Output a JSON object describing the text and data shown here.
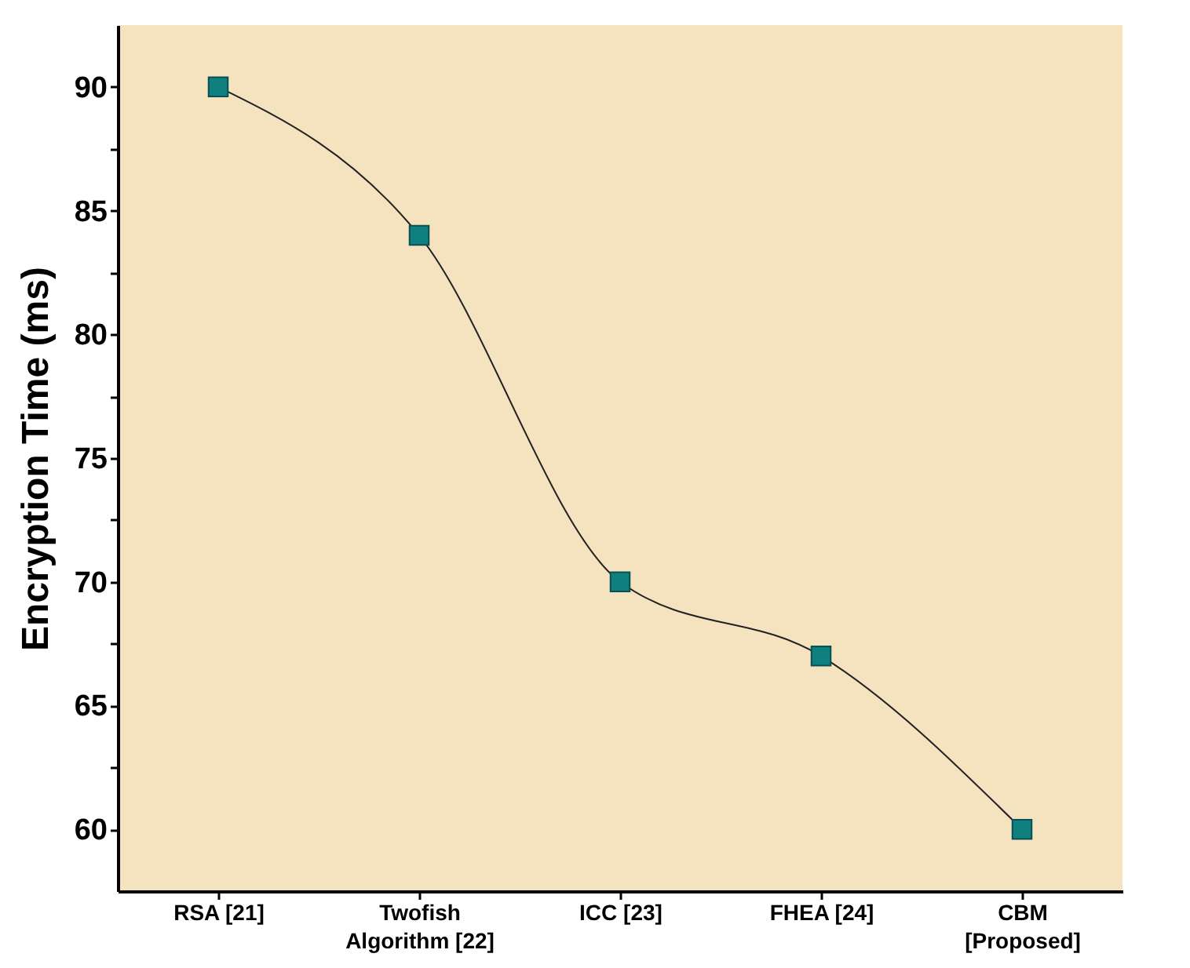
{
  "chart_data": {
    "type": "line",
    "ylabel": "Encryption Time (ms)",
    "categories": [
      "RSA [21]",
      "Twofish\nAlgorithm [22]",
      "ICC [23]",
      "FHEA [24]",
      "CBM\n[Proposed]"
    ],
    "series": [
      {
        "color": "#0f7f7f",
        "values": [
          90,
          84,
          70,
          67,
          60
        ]
      }
    ],
    "marker": "square",
    "line_style": "solid",
    "ylim": [
      57.5,
      92.5
    ],
    "yticks": [
      60,
      {
        "value": 62.5,
        "label": null
      },
      65,
      {
        "value": 67.5,
        "label": null
      },
      70,
      {
        "value": 72.5,
        "label": null
      },
      75,
      {
        "value": 77.5,
        "label": null
      },
      80,
      {
        "value": 82.5,
        "label": null
      },
      85,
      {
        "value": 87.5,
        "label": null
      },
      90
    ],
    "grid": false
  }
}
